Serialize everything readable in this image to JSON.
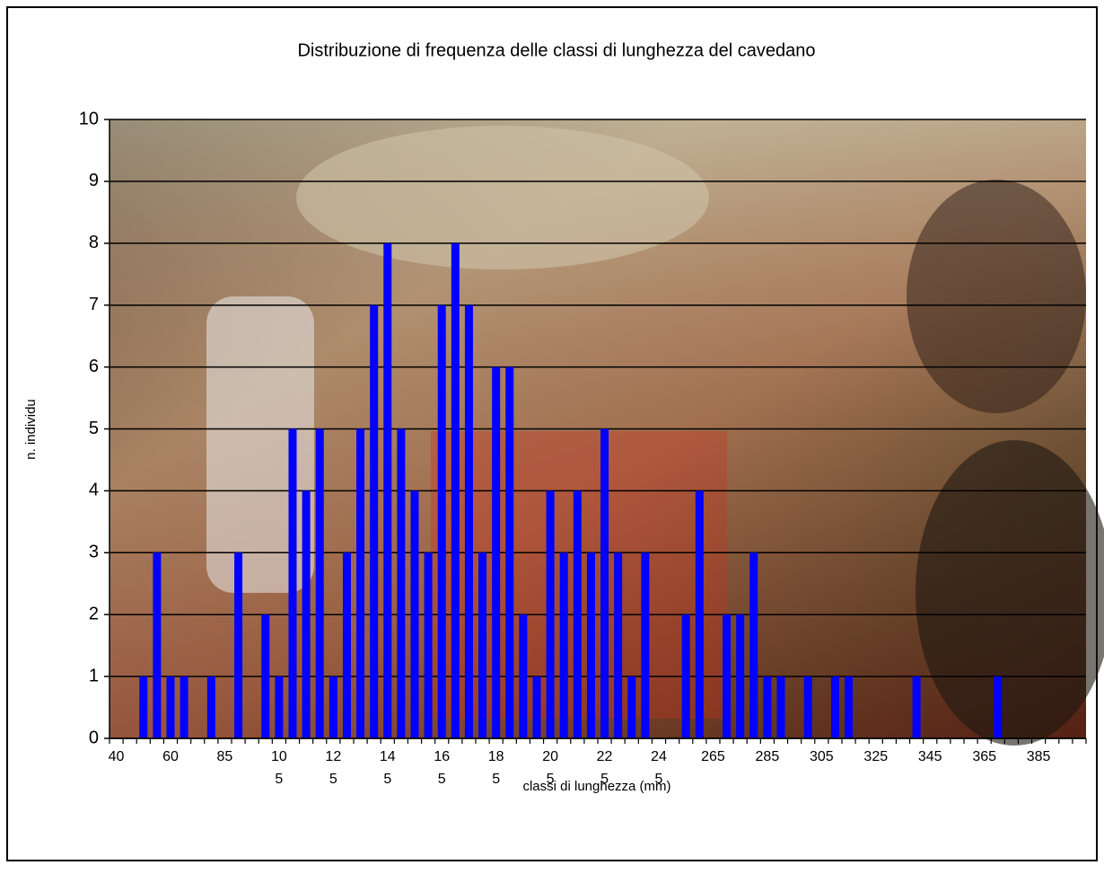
{
  "chart_data": {
    "type": "bar",
    "title": "Distribuzione di frequenza delle classi di lunghezza del cavedano",
    "x_label": "classi di lunghezza (mm)",
    "y_label": "n. individu",
    "categories": [
      "40",
      null,
      null,
      null,
      "60",
      null,
      null,
      null,
      "85",
      null,
      null,
      null,
      "105",
      null,
      null,
      null,
      "125",
      null,
      null,
      null,
      "145",
      null,
      null,
      null,
      "165",
      null,
      null,
      null,
      "185",
      null,
      null,
      null,
      "205",
      null,
      null,
      null,
      "225",
      null,
      null,
      null,
      "245",
      null,
      null,
      null,
      "265",
      null,
      null,
      null,
      "285",
      null,
      null,
      null,
      "305",
      null,
      null,
      null,
      "325",
      null,
      null,
      null,
      "345",
      null,
      null,
      null,
      "365",
      null,
      null,
      null,
      "385",
      null,
      null,
      null
    ],
    "values": [
      0,
      0,
      1,
      3,
      1,
      1,
      0,
      1,
      0,
      3,
      0,
      2,
      1,
      5,
      4,
      5,
      1,
      3,
      5,
      7,
      8,
      5,
      4,
      3,
      7,
      8,
      7,
      3,
      6,
      6,
      2,
      1,
      4,
      3,
      4,
      3,
      5,
      3,
      1,
      3,
      0,
      0,
      2,
      4,
      0,
      2,
      2,
      3,
      1,
      1,
      0,
      1,
      0,
      1,
      1,
      0,
      0,
      0,
      0,
      1,
      0,
      0,
      0,
      0,
      0,
      1,
      0,
      0,
      0,
      0,
      0,
      0
    ],
    "color": "#0000ff",
    "ylim": [
      0,
      10
    ],
    "yticks": [
      0,
      1,
      2,
      3,
      4,
      5,
      6,
      7,
      8,
      9,
      10
    ],
    "grid": true
  }
}
